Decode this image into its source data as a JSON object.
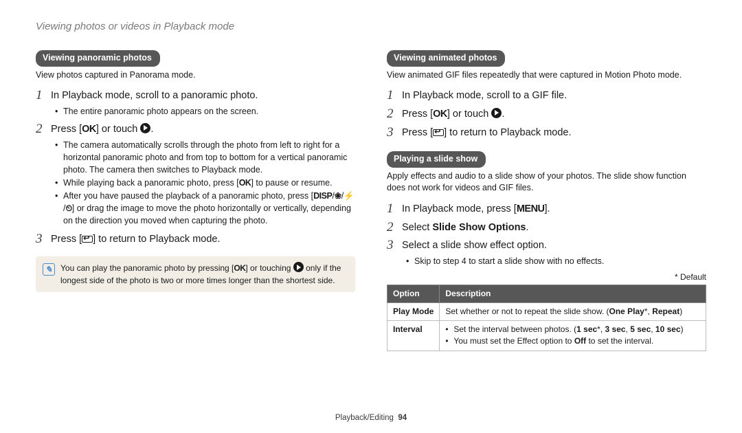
{
  "page_title": "Viewing photos or videos in Playback mode",
  "left": {
    "section1_title": "Viewing panoramic photos",
    "section1_intro": "View photos captured in Panorama mode.",
    "step1": "In Playback mode, scroll to a panoramic photo.",
    "step1_b1": "The entire panoramic photo appears on the screen.",
    "step2_pre": "Press [",
    "step2_ok": "OK",
    "step2_mid": "] or touch ",
    "step2_post": ".",
    "step2_b1_pre": "The camera automatically scrolls through the photo from left to right for a horizontal panoramic photo and from top to bottom for a vertical panoramic photo. The camera then switches to Playback mode.",
    "step2_b2_pre": "While playing back a panoramic photo, press [",
    "step2_b2_ok": "OK",
    "step2_b2_post": "] to pause or resume.",
    "step2_b3_pre": "After you have paused the playback of a panoramic photo, press [",
    "step2_b3_disp": "DISP",
    "step2_b3_slash": "/",
    "step2_b3_flower": "❀",
    "step2_b3_flash": "⚡",
    "step2_b3_timer": "⏲",
    "step2_b3_post": "] or drag the image to move the photo horizontally or vertically, depending on the direction you moved when capturing the photo.",
    "step3_pre": "Press [",
    "step3_post": "] to return to Playback mode.",
    "note_pre": "You can play the panoramic photo by pressing [",
    "note_ok": "OK",
    "note_mid": "] or touching ",
    "note_post": " only if the longest side of the photo is two or more times longer than the shortest side."
  },
  "right": {
    "section1_title": "Viewing animated photos",
    "section1_intro": "View animated GIF files repeatedly that were captured in Motion Photo mode.",
    "r_step1": "In Playback mode, scroll to a GIF file.",
    "r_step2_pre": "Press [",
    "r_step2_ok": "OK",
    "r_step2_mid": "] or touch ",
    "r_step2_post": ".",
    "r_step3_pre": "Press [",
    "r_step3_post": "] to return to Playback mode.",
    "section2_title": "Playing a slide show",
    "section2_intro": "Apply effects and audio to a slide show of your photos. The slide show function does not work for videos and GIF files.",
    "s_step1_pre": "In Playback mode, press [",
    "s_step1_menu": "MENU",
    "s_step1_post": "].",
    "s_step2_pre": "Select ",
    "s_step2_bold": "Slide Show Options",
    "s_step2_post": ".",
    "s_step3": "Select a slide show effect option.",
    "s_step3_b1": "Skip to step 4 to start a slide show with no effects.",
    "default_label": "* Default",
    "th_option": "Option",
    "th_desc": "Description",
    "row1_opt": "Play Mode",
    "row1_desc_pre": "Set whether or not to repeat the slide show. (",
    "row1_desc_b1": "One Play",
    "row1_desc_star": "*, ",
    "row1_desc_b2": "Repeat",
    "row1_desc_post": ")",
    "row2_opt": "Interval",
    "row2_b1_pre": "Set the interval between photos. (",
    "row2_b1_v1": "1 sec",
    "row2_b1_star": "*, ",
    "row2_b1_v2": "3 sec",
    "row2_b1_c1": ", ",
    "row2_b1_v3": "5 sec",
    "row2_b1_c2": ", ",
    "row2_b1_v4": "10 sec",
    "row2_b1_post": ")",
    "row2_b2_pre": "You must set the Effect option to ",
    "row2_b2_off": "Off",
    "row2_b2_post": " to set the interval."
  },
  "footer_section": "Playback/Editing",
  "footer_page": "94"
}
